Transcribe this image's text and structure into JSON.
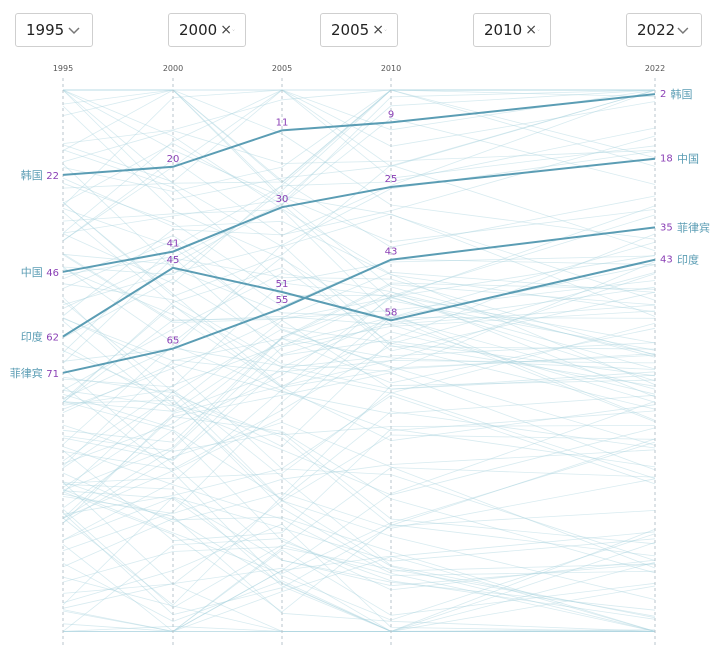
{
  "selectors": [
    {
      "value": "1995",
      "clear": ""
    },
    {
      "value": "2000",
      "clear": "×"
    },
    {
      "value": "2005",
      "clear": "×"
    },
    {
      "value": "2010",
      "clear": "×"
    },
    {
      "value": "2022",
      "clear": ""
    }
  ],
  "colors": {
    "highlight": "#5b9db4",
    "background_line": "#a9d3dd",
    "rank_label": "#8a3fb5",
    "axis": "#b8c6cc"
  },
  "icons": {
    "dropdown": "chevron-down-icon",
    "clear": "clear-x-icon"
  },
  "chart_data": {
    "type": "line",
    "subtype": "bump chart (rank over time)",
    "x": [
      "1995",
      "2000",
      "2005",
      "2010",
      "2022"
    ],
    "y_scale": "rank (1 at top, increasing downward)",
    "series": [
      {
        "name": "韩国",
        "values": [
          22,
          20,
          11,
          9,
          2
        ]
      },
      {
        "name": "中国",
        "values": [
          46,
          41,
          30,
          25,
          18
        ]
      },
      {
        "name": "菲律宾",
        "values": [
          71,
          65,
          55,
          43,
          35
        ]
      },
      {
        "name": "印度",
        "values": [
          62,
          45,
          51,
          58,
          43
        ]
      }
    ],
    "background_series_note": "many unlabeled grey-blue lines for other countries"
  }
}
